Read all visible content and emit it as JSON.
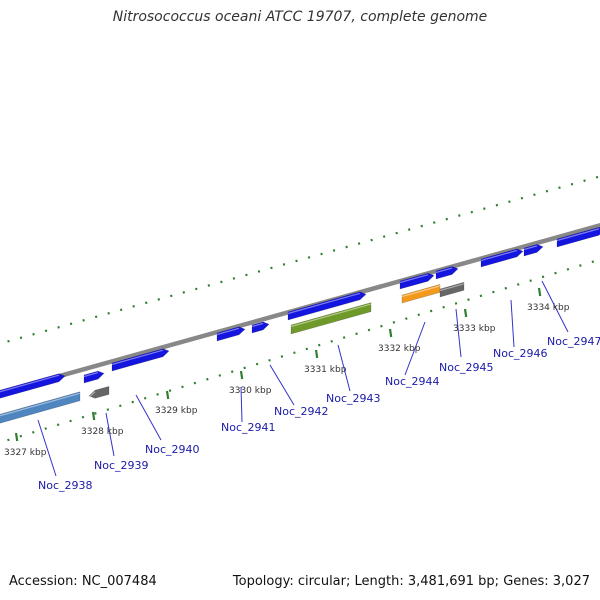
{
  "title": "Nitrosococcus oceani ATCC 19707, complete genome",
  "footer": {
    "accession": "Accession: NC_007484",
    "topology": "Topology: circular",
    "length": "Length: 3,481,691 bp",
    "genes": "Genes: 3,027"
  },
  "colors": {
    "backbone": "#888888",
    "gene_blue": "#1515e0",
    "gene_steel": "#4f86c0",
    "gene_gray": "#666666",
    "gene_green": "#6f9a2a",
    "gene_orange": "#f39a1d",
    "tick": "#2f7f2f",
    "label_text": "#1a1aa8",
    "leader_line": "#3333cc"
  },
  "scale_ticks": [
    {
      "label": "3327 kbp"
    },
    {
      "label": "3328 kbp"
    },
    {
      "label": "3329 kbp"
    },
    {
      "label": "3330 kbp"
    },
    {
      "label": "3331 kbp"
    },
    {
      "label": "3332 kbp"
    },
    {
      "label": "3333 kbp"
    },
    {
      "label": "3334 kbp"
    }
  ],
  "gene_labels": [
    {
      "name": "Noc_2938"
    },
    {
      "name": "Noc_2939"
    },
    {
      "name": "Noc_2940"
    },
    {
      "name": "Noc_2941"
    },
    {
      "name": "Noc_2942"
    },
    {
      "name": "Noc_2943"
    },
    {
      "name": "Noc_2944"
    },
    {
      "name": "Noc_2945"
    },
    {
      "name": "Noc_2946"
    },
    {
      "name": "Noc_2947"
    }
  ]
}
